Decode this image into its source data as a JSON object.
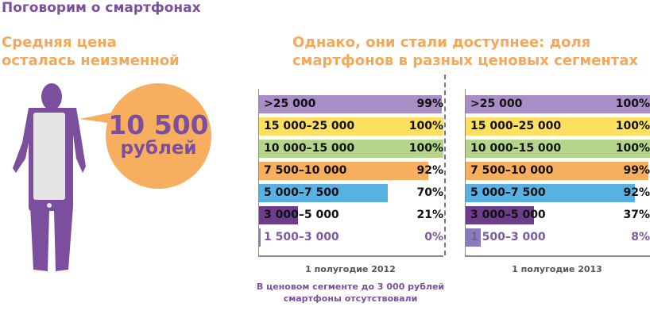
{
  "header": {
    "title": "Поговорим о смартфонах"
  },
  "left": {
    "heading_line1": "Средняя цена",
    "heading_line2": "осталась неизменной",
    "price_value": "10 500",
    "price_unit": "рублей"
  },
  "right": {
    "heading_line1": "Однако, они стали доступнее: доля",
    "heading_line2": "смартфонов в разных ценовых сегментах"
  },
  "chart_data": {
    "type": "bar",
    "orientation": "horizontal",
    "title": "Однако, они стали доступнее: доля смартфонов в разных ценовых сегментах",
    "categories": [
      ">25 000",
      "15 000–25 000",
      "10 000–15 000",
      "7 500–10 000",
      "5 000–7 500",
      "3 000–5 000",
      "1 500–3 000"
    ],
    "colors": [
      "#a98dc6",
      "#fde060",
      "#b5d68a",
      "#f8ae5f",
      "#58b0e3",
      "#6b3d8a",
      "#8a7bbf"
    ],
    "series": [
      {
        "name": "1 полугодие 2012",
        "values": [
          99,
          100,
          100,
          92,
          70,
          21,
          0
        ],
        "labels": [
          "99%",
          "100%",
          "100%",
          "92%",
          "70%",
          "21%",
          "0%"
        ]
      },
      {
        "name": "1 полугодие 2013",
        "values": [
          100,
          100,
          100,
          99,
          92,
          37,
          8
        ],
        "labels": [
          "100%",
          "100%",
          "100%",
          "99%",
          "92%",
          "37%",
          "8%"
        ]
      }
    ],
    "xlim": [
      0,
      100
    ],
    "unit": "%",
    "note": "В ценовом сегменте до 3 000 рублей смартфоны отсутствовали"
  }
}
